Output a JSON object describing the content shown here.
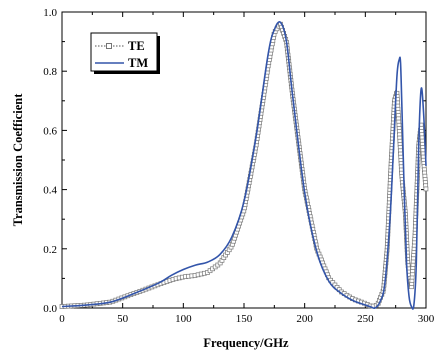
{
  "chart_data": {
    "type": "line",
    "title": "",
    "xlabel": "Frequency/GHz",
    "ylabel": "Transmission Coefficient",
    "xlim": [
      0,
      300
    ],
    "ylim": [
      0.0,
      1.0
    ],
    "xticks": [
      0,
      50,
      100,
      150,
      200,
      250,
      300
    ],
    "yticks": [
      0.0,
      0.2,
      0.4,
      0.6,
      0.8,
      1.0
    ],
    "xtick_labels": [
      "0",
      "50",
      "100",
      "150",
      "200",
      "250",
      "300"
    ],
    "ytick_labels": [
      "0.0",
      "0.2",
      "0.4",
      "0.6",
      "0.8",
      "1.0"
    ],
    "legend_position": "top-left",
    "grid": false,
    "series": [
      {
        "name": "TE",
        "color": "#555555",
        "style": "dotted line with open square markers",
        "x": [
          0,
          20,
          40,
          60,
          80,
          90,
          100,
          110,
          120,
          130,
          140,
          150,
          160,
          170,
          175,
          180,
          185,
          190,
          200,
          210,
          220,
          230,
          240,
          250,
          255,
          260,
          265,
          268,
          271,
          274,
          276,
          278,
          280,
          283,
          285,
          288,
          291,
          294,
          296,
          298,
          300
        ],
        "values": [
          0.005,
          0.01,
          0.02,
          0.05,
          0.08,
          0.095,
          0.105,
          0.11,
          0.12,
          0.15,
          0.21,
          0.33,
          0.55,
          0.82,
          0.93,
          0.96,
          0.9,
          0.72,
          0.4,
          0.2,
          0.1,
          0.055,
          0.03,
          0.015,
          0.005,
          0.01,
          0.06,
          0.2,
          0.47,
          0.7,
          0.73,
          0.6,
          0.45,
          0.32,
          0.15,
          0.07,
          0.25,
          0.55,
          0.62,
          0.5,
          0.4
        ]
      },
      {
        "name": "TM",
        "color": "#3355aa",
        "style": "solid line",
        "x": [
          0,
          20,
          40,
          60,
          80,
          90,
          100,
          110,
          120,
          130,
          140,
          150,
          160,
          170,
          175,
          180,
          185,
          190,
          200,
          210,
          220,
          230,
          240,
          250,
          255,
          258,
          262,
          266,
          270,
          273,
          276,
          278,
          279,
          280,
          282,
          284,
          286,
          288,
          290,
          292,
          294,
          296,
          298,
          300
        ],
        "values": [
          0.005,
          0.01,
          0.02,
          0.05,
          0.085,
          0.11,
          0.13,
          0.145,
          0.155,
          0.18,
          0.24,
          0.36,
          0.58,
          0.86,
          0.94,
          0.965,
          0.9,
          0.72,
          0.39,
          0.19,
          0.09,
          0.05,
          0.025,
          0.01,
          0.003,
          0.0,
          0.02,
          0.08,
          0.28,
          0.52,
          0.78,
          0.84,
          0.83,
          0.7,
          0.4,
          0.15,
          0.04,
          0.005,
          0.01,
          0.15,
          0.55,
          0.74,
          0.66,
          0.48
        ]
      }
    ]
  }
}
